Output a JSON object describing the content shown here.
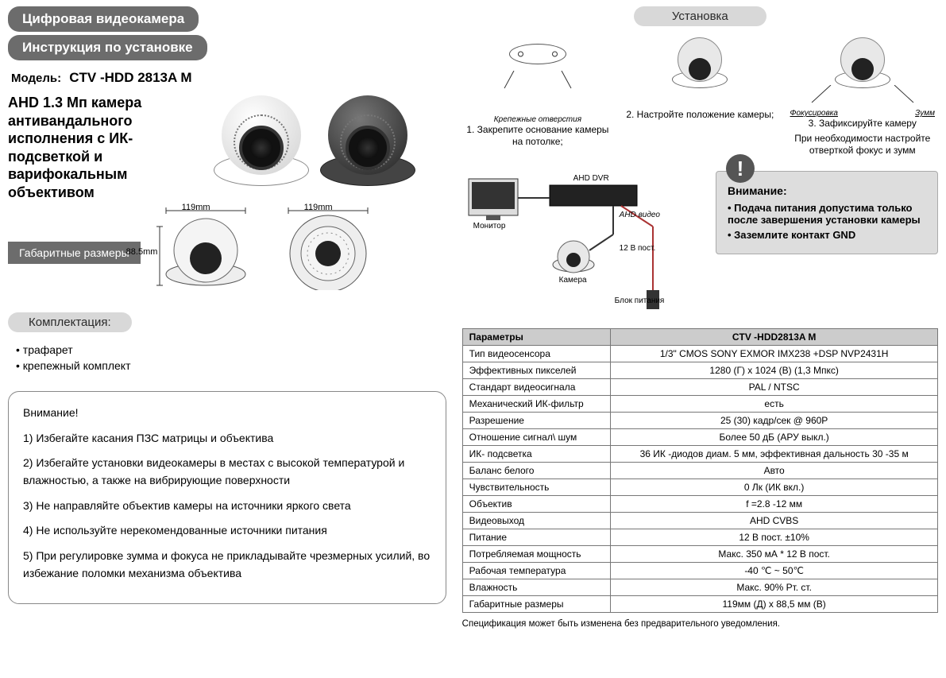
{
  "header": {
    "title1": "Цифровая видеокамера",
    "title2": "Инструкция по установке",
    "model_label": "Модель:",
    "model_value": "CTV -HDD 2813A M",
    "hero_text": "AHD 1.3 Мп камера антивандального исполнения с ИК-подсветкой  и варифокальным объективом"
  },
  "dimensions": {
    "title": "Габаритные размеры",
    "width": "119mm",
    "height": "88.5mm",
    "width2": "119mm"
  },
  "kit": {
    "title": "Комплектация:",
    "items": [
      "трафарет",
      "крепежный комплект"
    ]
  },
  "caution": {
    "title": "Внимание!",
    "items": [
      "1) Избегайте касания ПЗС матрицы и объектива",
      "2) Избегайте  установки видеокамеры в местах с высокой температурой и влажностью, а также на вибрирующие поверхности",
      "3) Не направляйте объектив камеры на источники яркого света",
      "4) Не используйте нерекомендованные источники питания",
      "5) При регулировке зумма и фокуса не прикладывайте чрезмерных усилий, во избежание поломки механизма объектива"
    ]
  },
  "install": {
    "title": "Установка",
    "step1_sub": "Крепежные отверстия",
    "step1": "1. Закрепите основание камеры на потолке;",
    "step2": "2. Настройте положение камеры;",
    "step3_sub_left": "Фокусировка",
    "step3_sub_right": "Зумм",
    "step3": "3. Зафиксируйте камеру",
    "step3_note": "При необходимости настройте отверткой фокус и зумм"
  },
  "wiring": {
    "monitor": "Монитор",
    "dvr": "AHD DVR",
    "video": "AHD видео",
    "power": "12 В пост.",
    "camera": "Камера",
    "psu": "Блок питания"
  },
  "alert": {
    "badge": "!",
    "title": "Внимание:",
    "items": [
      "Подача питания допустима только после завершения установки камеры",
      "Заземлите контакт GND"
    ]
  },
  "spec": {
    "col_param": "Параметры",
    "col_model": "CTV -HDD2813A M",
    "rows": [
      [
        "Тип видеосенсора",
        "1/3\" CMOS SONY EXMOR IMX238 +DSP NVP2431H"
      ],
      [
        "Эффективных пикселей",
        "1280 (Г) x 1024 (В) (1,3 Мпкс)"
      ],
      [
        "Стандарт видеосигнала",
        "PAL / NTSC"
      ],
      [
        "Механический ИК-фильтр",
        "есть"
      ],
      [
        "Разрешение",
        "25 (30) кадр/сек @ 960P"
      ],
      [
        "Отношение сигнал\\ шум",
        "Более 50 дБ (АРУ выкл.)"
      ],
      [
        "ИК- подсветка",
        "36 ИК -диодов диам. 5 мм, эффективная дальность  30 -35 м"
      ],
      [
        "Баланс белого",
        "Авто"
      ],
      [
        "Чувствительность",
        "0 Лк (ИК вкл.)"
      ],
      [
        "Объектив",
        "f =2.8 -12 мм"
      ],
      [
        "Видеовыход",
        "AHD CVBS"
      ],
      [
        "Питание",
        "12 В пост.  ±10%"
      ],
      [
        "Потребляемая мощность",
        "Макс. 350 мА * 12 В пост."
      ],
      [
        "Рабочая температура",
        "-40 ℃ ~ 50℃"
      ],
      [
        "Влажность",
        "Макс. 90% Рт. ст."
      ],
      [
        "Габаритные размеры",
        "119мм (Д) x 88,5 мм (В)"
      ]
    ],
    "footnote": "Спецификация может быть изменена без предварительного уведомления."
  },
  "colors": {
    "pill_bg": "#6c6c6c",
    "pill_light_bg": "#d8d8d8",
    "alert_bg": "#dddddd",
    "table_header_bg": "#cccccc",
    "border": "#777777"
  }
}
